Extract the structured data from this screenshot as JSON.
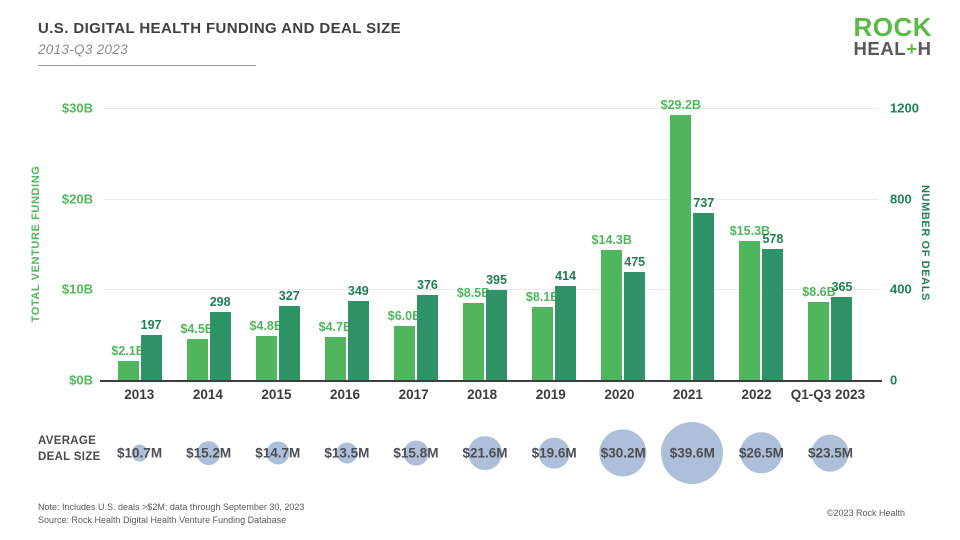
{
  "header": {
    "title": "U.S. DIGITAL HEALTH FUNDING AND DEAL SIZE",
    "subtitle": "2013-Q3 2023"
  },
  "logo": {
    "word1": "ROCK",
    "word2_part1": "HEAL",
    "word2_plus": "+",
    "word2_part2": "H"
  },
  "colors": {
    "funding_bar": "#4fb65d",
    "deals_bar": "#2e9367",
    "left_axis_green": "#53b85c",
    "right_axis_green": "#1f8255",
    "bubble": "#aec0d9",
    "logo_green": "#5cb947",
    "logo_gray": "#58595b"
  },
  "chart_data": {
    "type": "bar",
    "title": "U.S. DIGITAL HEALTH FUNDING AND DEAL SIZE",
    "subtitle": "2013-Q3 2023",
    "categories": [
      "2013",
      "2014",
      "2015",
      "2016",
      "2017",
      "2018",
      "2019",
      "2020",
      "2021",
      "2022",
      "Q1-Q3 2023"
    ],
    "series": [
      {
        "name": "Total venture funding ($B)",
        "axis": "left",
        "color": "#4fb65d",
        "values": [
          2.1,
          4.5,
          4.8,
          4.7,
          6.0,
          8.5,
          8.1,
          14.3,
          29.2,
          15.3,
          8.6
        ],
        "labels": [
          "$2.1B",
          "$4.5B",
          "$4.8B",
          "$4.7B",
          "$6.0B",
          "$8.5B",
          "$8.1B",
          "$14.3B",
          "$29.2B",
          "$15.3B",
          "$8.6B"
        ]
      },
      {
        "name": "Number of deals",
        "axis": "right",
        "color": "#2e9367",
        "values": [
          197,
          298,
          327,
          349,
          376,
          395,
          414,
          475,
          737,
          578,
          365
        ],
        "labels": [
          "197",
          "298",
          "327",
          "349",
          "376",
          "395",
          "414",
          "475",
          "737",
          "578",
          "365"
        ]
      }
    ],
    "left_axis": {
      "title": "TOTAL VENTURE FUNDING",
      "tick_labels": [
        "$30B",
        "$20B",
        "$10B",
        "$0B"
      ],
      "min": 0,
      "max": 30
    },
    "right_axis": {
      "title": "NUMBER OF DEALS",
      "tick_labels": [
        "1200",
        "800",
        "400",
        "0"
      ],
      "min": 0,
      "max": 1200
    },
    "grid": true,
    "legend_position": "none",
    "avg_deal_size": {
      "label_line1": "AVERAGE",
      "label_line2": "DEAL SIZE",
      "values": [
        10.7,
        15.2,
        14.7,
        13.5,
        15.8,
        21.6,
        19.6,
        30.2,
        39.6,
        26.5,
        23.5
      ],
      "labels": [
        "$10.7M",
        "$15.2M",
        "$14.7M",
        "$13.5M",
        "$15.8M",
        "$21.6M",
        "$19.6M",
        "$30.2M",
        "$39.6M",
        "$26.5M",
        "$23.5M"
      ]
    }
  },
  "footer": {
    "note": "Note: Includes U.S. deals >$2M; data through September 30, 2023",
    "source": "Source: Rock Health Digital Health Venture Funding Database",
    "copyright": "©2023 Rock Health"
  }
}
